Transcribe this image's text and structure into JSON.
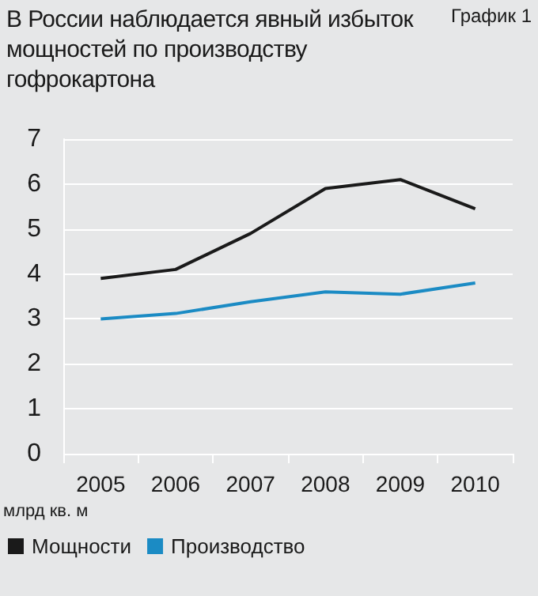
{
  "chart_data": {
    "type": "line",
    "title": "В России наблюдается явный избыток мощностей по производству гофрокартона",
    "annotations": [
      "График 1"
    ],
    "ylabel": "млрд кв. м",
    "categories": [
      "2005",
      "2006",
      "2007",
      "2008",
      "2009",
      "2010"
    ],
    "series": [
      {
        "name": "Мощности",
        "color": "#1a1a1a",
        "values": [
          3.9,
          4.1,
          4.9,
          5.9,
          6.1,
          5.45
        ]
      },
      {
        "name": "Производство",
        "color": "#1b8bc4",
        "values": [
          3.0,
          3.12,
          3.38,
          3.6,
          3.55,
          3.8
        ]
      }
    ],
    "ylim": [
      0,
      7
    ],
    "yticks": [
      0,
      1,
      2,
      3,
      4,
      5,
      6,
      7
    ],
    "grid": "y",
    "legend": "bottom left",
    "marker": "none",
    "line_style": "solid"
  }
}
